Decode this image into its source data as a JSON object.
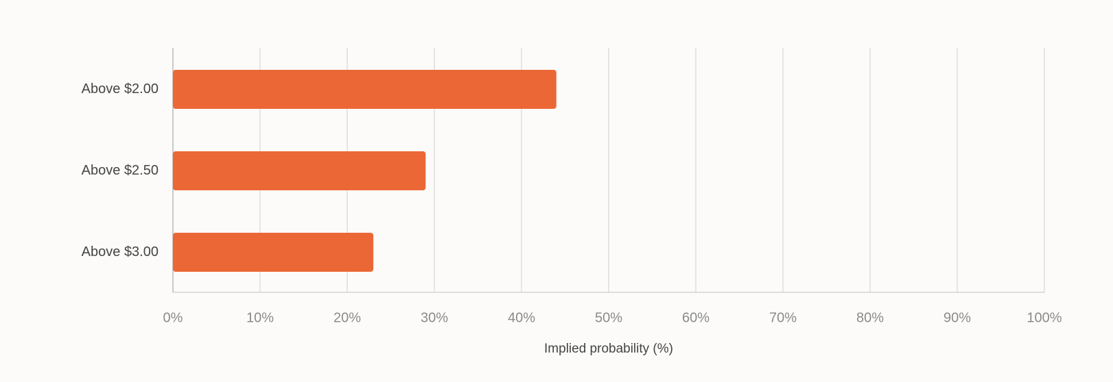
{
  "chart_data": {
    "type": "hbar",
    "categories": [
      "Above $2.00",
      "Above $2.50",
      "Above $3.00"
    ],
    "values": [
      44,
      29,
      23
    ],
    "color": "#eb6836",
    "xlabel": "Implied probability (%)",
    "xlim": [
      0,
      100
    ],
    "xticks": [
      {
        "value": 0,
        "label": "0%"
      },
      {
        "value": 10,
        "label": "10%"
      },
      {
        "value": 20,
        "label": "20%"
      },
      {
        "value": 30,
        "label": "30%"
      },
      {
        "value": 40,
        "label": "40%"
      },
      {
        "value": 50,
        "label": "50%"
      },
      {
        "value": 60,
        "label": "60%"
      },
      {
        "value": 70,
        "label": "70%"
      },
      {
        "value": 80,
        "label": "80%"
      },
      {
        "value": 90,
        "label": "90%"
      },
      {
        "value": 100,
        "label": "100%"
      }
    ],
    "grid": true
  }
}
